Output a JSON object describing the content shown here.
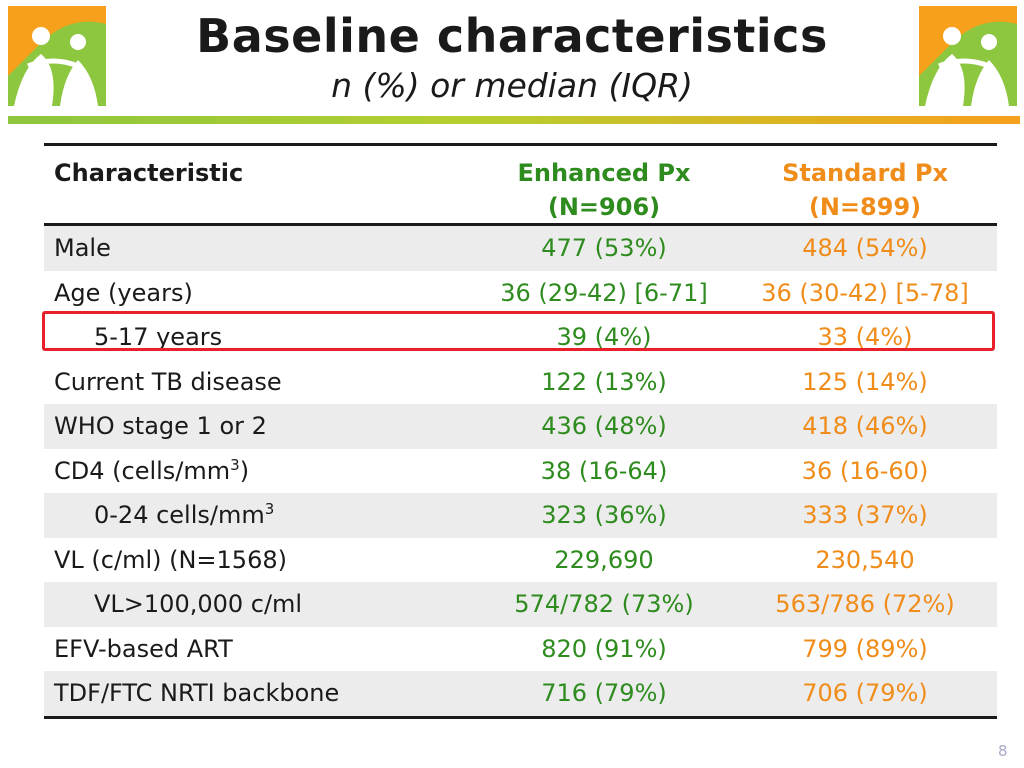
{
  "header": {
    "title": "Baseline characteristics",
    "subtitle": "n (%) or median (IQR)"
  },
  "colors": {
    "enhanced": "#2e8b1e",
    "standard": "#f08c1a",
    "highlight": "#e8202a"
  },
  "table": {
    "headers": {
      "characteristic": "Characteristic",
      "enhanced_line1": "Enhanced Px",
      "enhanced_line2": "(N=906)",
      "standard_line1": "Standard Px",
      "standard_line2": "(N=899)"
    },
    "rows": [
      {
        "label": "Male",
        "enhanced": "477 (53%)",
        "standard": "484 (54%)"
      },
      {
        "label": "Age (years)",
        "enhanced": "36 (29-42) [6-71]",
        "standard": "36 (30-42) [5-78]"
      },
      {
        "label": "5-17 years",
        "enhanced": "39 (4%)",
        "standard": "33 (4%)"
      },
      {
        "label": "Current TB disease",
        "enhanced": "122 (13%)",
        "standard": "125 (14%)"
      },
      {
        "label": "WHO stage 1 or 2",
        "enhanced": "436 (48%)",
        "standard": "418 (46%)"
      },
      {
        "label_main": "CD4 (cells/mm",
        "label_sup": "3",
        "label_tail": ")",
        "enhanced": "38 (16-64)",
        "standard": "36 (16-60)"
      },
      {
        "label_main": "0-24 cells/mm",
        "label_sup": "3",
        "enhanced": "323 (36%)",
        "standard": "333 (37%)"
      },
      {
        "label": "VL (c/ml) (N=1568)",
        "enhanced": "229,690",
        "standard": "230,540"
      },
      {
        "label": "VL>100,000 c/ml",
        "enhanced": "574/782 (73%)",
        "standard": "563/786 (72%)"
      },
      {
        "label": "EFV-based ART",
        "enhanced": "820 (91%)",
        "standard": "799 (89%)"
      },
      {
        "label": "TDF/FTC NRTI backbone",
        "enhanced": "716 (79%)",
        "standard": "706 (79%)"
      }
    ]
  },
  "footer": {
    "page_number": "8"
  }
}
